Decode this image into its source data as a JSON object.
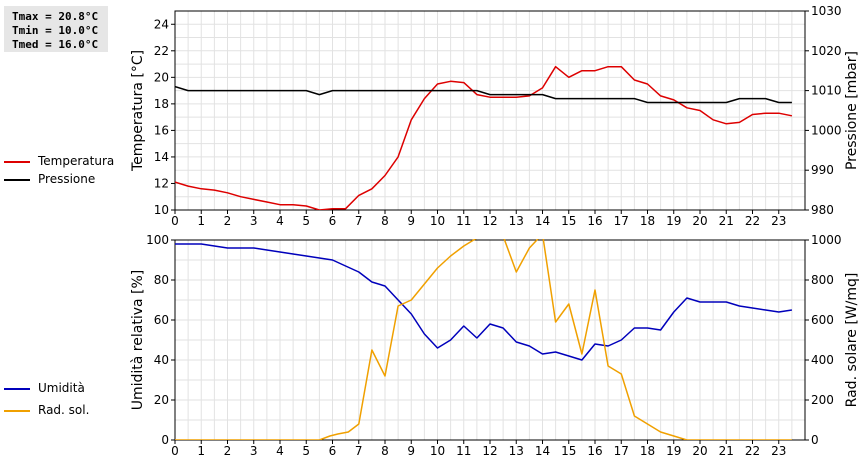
{
  "stats": {
    "tmax": "Tmax = 20.8°C",
    "tmin": "Tmin = 10.0°C",
    "tmed": "Tmed = 16.0°C"
  },
  "legend_top": [
    {
      "label": "Temperatura",
      "color": "#dd0000"
    },
    {
      "label": "Pressione",
      "color": "#000000"
    }
  ],
  "legend_bottom": [
    {
      "label": "Umidità",
      "color": "#0000bb"
    },
    {
      "label": "Rad. sol.",
      "color": "#f0a000"
    }
  ],
  "chart_data": [
    {
      "type": "line",
      "x_ticks": [
        "0",
        "1",
        "2",
        "3",
        "4",
        "5",
        "6",
        "7",
        "8",
        "9",
        "10",
        "11",
        "12",
        "13",
        "14",
        "15",
        "16",
        "17",
        "18",
        "19",
        "20",
        "21",
        "22",
        "23"
      ],
      "xlim": [
        0,
        24
      ],
      "ylabel": "Temperatura [°C]",
      "ylim": [
        10,
        25
      ],
      "y_ticks": [
        "10",
        "12",
        "14",
        "16",
        "18",
        "20",
        "22",
        "24"
      ],
      "y2label": "Pressione [mbar]",
      "y2lim": [
        980,
        1030
      ],
      "y2_ticks": [
        "980",
        "990",
        "1000",
        "1010",
        "1020",
        "1030"
      ],
      "grid": true,
      "legend": "left-outside",
      "series": [
        {
          "name": "Temperatura",
          "axis": "left",
          "color": "#dd0000",
          "x": [
            0,
            0.5,
            1,
            1.5,
            2,
            2.5,
            3,
            3.5,
            4,
            4.5,
            5,
            5.5,
            6,
            6.5,
            7,
            7.5,
            8,
            8.5,
            9,
            9.5,
            10,
            10.5,
            11,
            11.5,
            12,
            12.5,
            13,
            13.5,
            14,
            14.5,
            15,
            15.5,
            16,
            16.5,
            17,
            17.5,
            18,
            18.5,
            19,
            19.5,
            20,
            20.5,
            21,
            21.5,
            22,
            22.5,
            23,
            23.5
          ],
          "values": [
            12.1,
            11.8,
            11.6,
            11.5,
            11.3,
            11.0,
            10.8,
            10.6,
            10.4,
            10.4,
            10.3,
            10.0,
            10.1,
            10.1,
            11.1,
            11.6,
            12.6,
            14.0,
            16.8,
            18.4,
            19.5,
            19.7,
            19.6,
            18.7,
            18.5,
            18.5,
            18.5,
            18.6,
            19.2,
            20.8,
            20.0,
            20.5,
            20.5,
            20.8,
            20.8,
            19.8,
            19.5,
            18.6,
            18.3,
            17.7,
            17.5,
            16.8,
            16.5,
            16.6,
            17.2,
            17.3,
            17.3,
            17.1
          ]
        },
        {
          "name": "Pressione",
          "axis": "right",
          "color": "#000000",
          "x": [
            0,
            0.5,
            1,
            1.5,
            2,
            2.5,
            3,
            3.5,
            4,
            4.5,
            5,
            5.5,
            6,
            6.5,
            7,
            7.5,
            8,
            8.5,
            9,
            9.5,
            10,
            10.5,
            11,
            11.5,
            12,
            12.5,
            13,
            13.5,
            14,
            14.5,
            15,
            15.5,
            16,
            16.5,
            17,
            17.5,
            18,
            18.5,
            19,
            19.5,
            20,
            20.5,
            21,
            21.5,
            22,
            22.5,
            23,
            23.5
          ],
          "values": [
            1011,
            1010,
            1010,
            1010,
            1010,
            1010,
            1010,
            1010,
            1010,
            1010,
            1010,
            1009,
            1010,
            1010,
            1010,
            1010,
            1010,
            1010,
            1010,
            1010,
            1010,
            1010,
            1010,
            1010,
            1009,
            1009,
            1009,
            1009,
            1009,
            1008,
            1008,
            1008,
            1008,
            1008,
            1008,
            1008,
            1007,
            1007,
            1007,
            1007,
            1007,
            1007,
            1007,
            1008,
            1008,
            1008,
            1007,
            1007
          ]
        }
      ]
    },
    {
      "type": "line",
      "x_ticks": [
        "0",
        "1",
        "2",
        "3",
        "4",
        "5",
        "6",
        "7",
        "8",
        "9",
        "10",
        "11",
        "12",
        "13",
        "14",
        "15",
        "16",
        "17",
        "18",
        "19",
        "20",
        "21",
        "22",
        "23"
      ],
      "xlim": [
        0,
        24
      ],
      "ylabel": "Umidità relativa [%]",
      "ylim": [
        0,
        100
      ],
      "y_ticks": [
        "0",
        "20",
        "40",
        "60",
        "80",
        "100"
      ],
      "y2label": "Rad. solare [W/mq]",
      "y2lim": [
        0,
        1000
      ],
      "y2_ticks": [
        "0",
        "200",
        "400",
        "600",
        "800",
        "1000"
      ],
      "grid": true,
      "legend": "left-outside",
      "series": [
        {
          "name": "Umidità",
          "axis": "left",
          "color": "#0000bb",
          "x": [
            0,
            0.5,
            1,
            1.5,
            2,
            2.5,
            3,
            3.5,
            4,
            4.5,
            5,
            5.5,
            6,
            6.5,
            7,
            7.5,
            8,
            8.5,
            9,
            9.5,
            10,
            10.5,
            11,
            11.5,
            12,
            12.5,
            13,
            13.5,
            14,
            14.5,
            15,
            15.5,
            16,
            16.5,
            17,
            17.5,
            18,
            18.5,
            19,
            19.5,
            20,
            20.5,
            21,
            21.5,
            22,
            22.5,
            23,
            23.5
          ],
          "values": [
            98,
            98,
            98,
            97,
            96,
            96,
            96,
            95,
            94,
            93,
            92,
            91,
            90,
            87,
            84,
            79,
            77,
            70,
            63,
            53,
            46,
            50,
            57,
            51,
            58,
            56,
            49,
            47,
            43,
            44,
            42,
            40,
            48,
            47,
            50,
            56,
            56,
            55,
            64,
            71,
            69,
            69,
            69,
            67,
            66,
            65,
            64,
            65
          ]
        },
        {
          "name": "Rad. sol.",
          "axis": "right",
          "color": "#f0a000",
          "x": [
            0,
            0.5,
            1,
            1.5,
            2,
            2.5,
            3,
            3.5,
            4,
            4.5,
            5,
            5.5,
            5.9,
            6.2,
            6.6,
            7,
            7.5,
            8,
            8.5,
            9,
            9.5,
            10,
            10.5,
            11,
            11.5,
            12,
            12.5,
            13,
            13.5,
            14,
            14.5,
            15,
            15.5,
            16,
            16.5,
            17,
            17.5,
            18,
            18.5,
            19,
            19.5,
            20,
            20.5,
            21,
            21.5,
            22,
            22.5,
            23,
            23.5
          ],
          "values": [
            0,
            0,
            0,
            0,
            0,
            0,
            0,
            0,
            0,
            0,
            0,
            0,
            20,
            30,
            40,
            80,
            450,
            320,
            670,
            700,
            780,
            860,
            920,
            970,
            1010,
            1020,
            1020,
            840,
            960,
            1030,
            590,
            680,
            430,
            750,
            370,
            330,
            120,
            80,
            40,
            20,
            0,
            0,
            0,
            0,
            0,
            0,
            0,
            0,
            0
          ]
        }
      ]
    }
  ]
}
